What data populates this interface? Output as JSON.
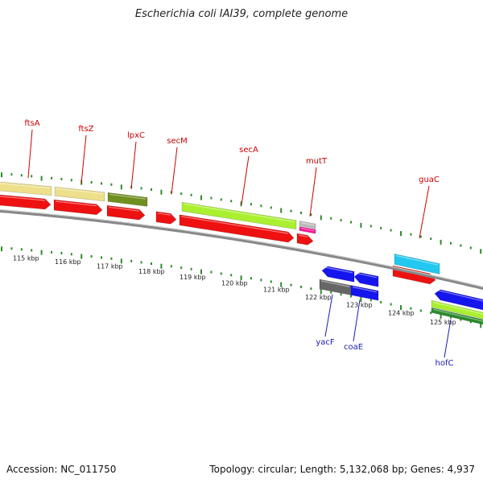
{
  "title": "Escherichia coli IAI39, complete genome",
  "accession": "Accession: NC_011750",
  "summary": "Topology: circular; Length: 5,132,068 bp; Genes: 4,937",
  "colors": {
    "backbone": "#888888",
    "tick": "#2e8b2e",
    "top_label": "#cc0000",
    "bottom_label": "#1a1ab0"
  },
  "scale_labels": [
    "115 kbp",
    "116 kbp",
    "117 kbp",
    "118 kbp",
    "119 kbp",
    "120 kbp",
    "121 kbp",
    "122 kbp",
    "123 kbp",
    "124 kbp",
    "125 kbp"
  ],
  "top_gene_labels": [
    "ftsA",
    "ftsZ",
    "lpxC",
    "secM",
    "secA",
    "mutT",
    "guaC"
  ],
  "bottom_gene_labels": [
    "yacF",
    "coaE",
    "hofC"
  ],
  "feature_colors": {
    "cds": "#ee1111",
    "gene_khaki": "#eee08a",
    "gene_olive": "#6f8f1f",
    "gene_lime": "#aaf030",
    "gene_gray": "#bbbbbb",
    "gene_magenta": "#ff1493",
    "gene_cyan": "#22c8f0",
    "cds_blue": "#1515ee",
    "gene_darkgray": "#666666",
    "gene_darkgreen": "#2b8a2b"
  }
}
